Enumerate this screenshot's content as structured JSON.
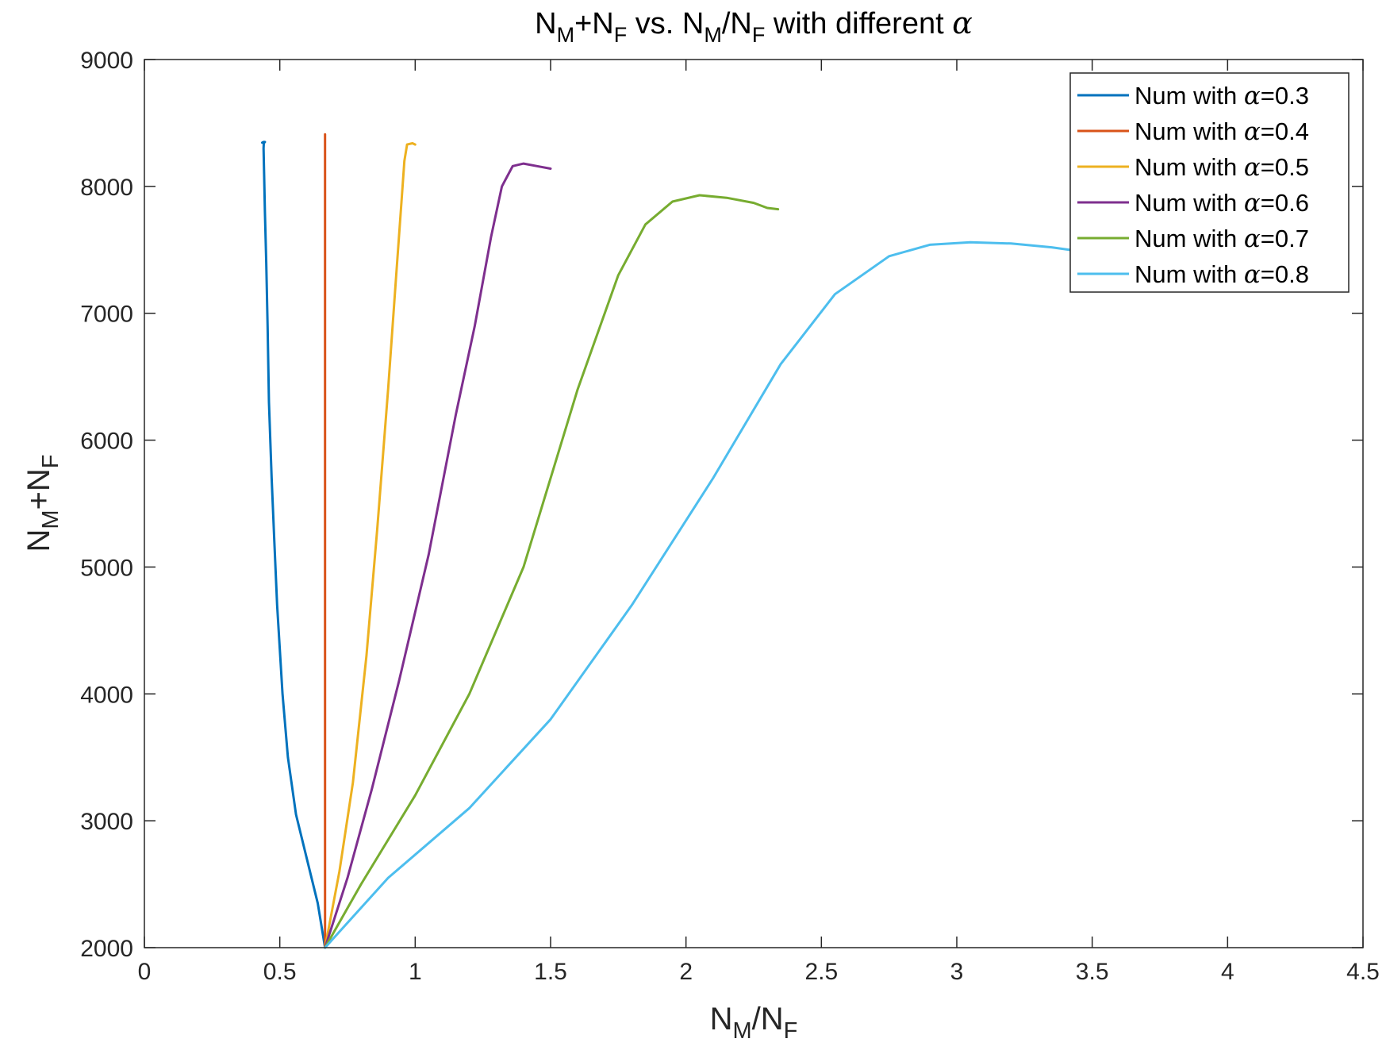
{
  "chart_data": {
    "type": "line",
    "title": {
      "parts": [
        {
          "text": "N"
        },
        {
          "text": "M",
          "sub": true
        },
        {
          "text": "+N"
        },
        {
          "text": "F",
          "sub": true
        },
        {
          "text": " vs. N"
        },
        {
          "text": "M",
          "sub": true
        },
        {
          "text": "/N"
        },
        {
          "text": "F",
          "sub": true
        },
        {
          "text": " with different "
        },
        {
          "text": "α",
          "greek": true
        }
      ]
    },
    "xlabel": {
      "parts": [
        {
          "text": "N"
        },
        {
          "text": "M",
          "sub": true
        },
        {
          "text": "/N"
        },
        {
          "text": "F",
          "sub": true
        }
      ]
    },
    "ylabel": {
      "parts": [
        {
          "text": "N"
        },
        {
          "text": "M",
          "sub": true
        },
        {
          "text": "+N"
        },
        {
          "text": "F",
          "sub": true
        }
      ]
    },
    "xlim": [
      0,
      4.5
    ],
    "ylim": [
      2000,
      9000
    ],
    "xticks": [
      0,
      0.5,
      1,
      1.5,
      2,
      2.5,
      3,
      3.5,
      4,
      4.5
    ],
    "xtick_labels": [
      "0",
      "0.5",
      "1",
      "1.5",
      "2",
      "2.5",
      "3",
      "3.5",
      "4",
      "4.5"
    ],
    "yticks": [
      2000,
      3000,
      4000,
      5000,
      6000,
      7000,
      8000,
      9000
    ],
    "ytick_labels": [
      "2000",
      "3000",
      "4000",
      "5000",
      "6000",
      "7000",
      "8000",
      "9000"
    ],
    "grid": false,
    "legend_position": "top-right",
    "series": [
      {
        "name": "Num with α=0.3",
        "color": "#0072BD",
        "x": [
          0.667,
          0.64,
          0.6,
          0.56,
          0.53,
          0.51,
          0.5,
          0.49,
          0.48,
          0.47,
          0.46,
          0.455,
          0.45,
          0.445,
          0.442,
          0.44,
          0.441,
          0.445,
          0.44,
          0.435
        ],
        "y": [
          2000,
          2350,
          2700,
          3050,
          3500,
          4000,
          4350,
          4700,
          5200,
          5700,
          6300,
          6900,
          7400,
          7800,
          8100,
          8300,
          8340,
          8350,
          8350,
          8345
        ]
      },
      {
        "name": "Num with α=0.4",
        "color": "#D95319",
        "x": [
          0.667,
          0.667
        ],
        "y": [
          2000,
          8410
        ]
      },
      {
        "name": "Num with α=0.5",
        "color": "#EDB120",
        "x": [
          0.667,
          0.72,
          0.77,
          0.82,
          0.86,
          0.9,
          0.93,
          0.95,
          0.96,
          0.97,
          0.99,
          1.0
        ],
        "y": [
          2000,
          2600,
          3300,
          4300,
          5300,
          6400,
          7300,
          7900,
          8200,
          8330,
          8340,
          8330
        ]
      },
      {
        "name": "Num with α=0.6",
        "color": "#7E2F8E",
        "x": [
          0.667,
          0.75,
          0.84,
          0.94,
          1.05,
          1.15,
          1.22,
          1.28,
          1.32,
          1.36,
          1.4,
          1.45,
          1.5
        ],
        "y": [
          2000,
          2550,
          3250,
          4100,
          5100,
          6200,
          6900,
          7600,
          8000,
          8160,
          8180,
          8160,
          8140
        ]
      },
      {
        "name": "Num with α=0.7",
        "color": "#77AC30",
        "x": [
          0.667,
          0.8,
          1.0,
          1.2,
          1.4,
          1.6,
          1.75,
          1.85,
          1.95,
          2.05,
          2.15,
          2.25,
          2.3,
          2.34
        ],
        "y": [
          2000,
          2500,
          3200,
          4000,
          5000,
          6400,
          7300,
          7700,
          7880,
          7930,
          7910,
          7870,
          7830,
          7820
        ]
      },
      {
        "name": "Num with α=0.8",
        "color": "#4DBEEE",
        "x": [
          0.667,
          0.9,
          1.2,
          1.5,
          1.8,
          2.1,
          2.35,
          2.55,
          2.75,
          2.9,
          3.05,
          3.2,
          3.35,
          3.45
        ],
        "y": [
          2000,
          2550,
          3100,
          3800,
          4700,
          5700,
          6600,
          7150,
          7450,
          7540,
          7560,
          7550,
          7520,
          7490
        ]
      }
    ]
  }
}
